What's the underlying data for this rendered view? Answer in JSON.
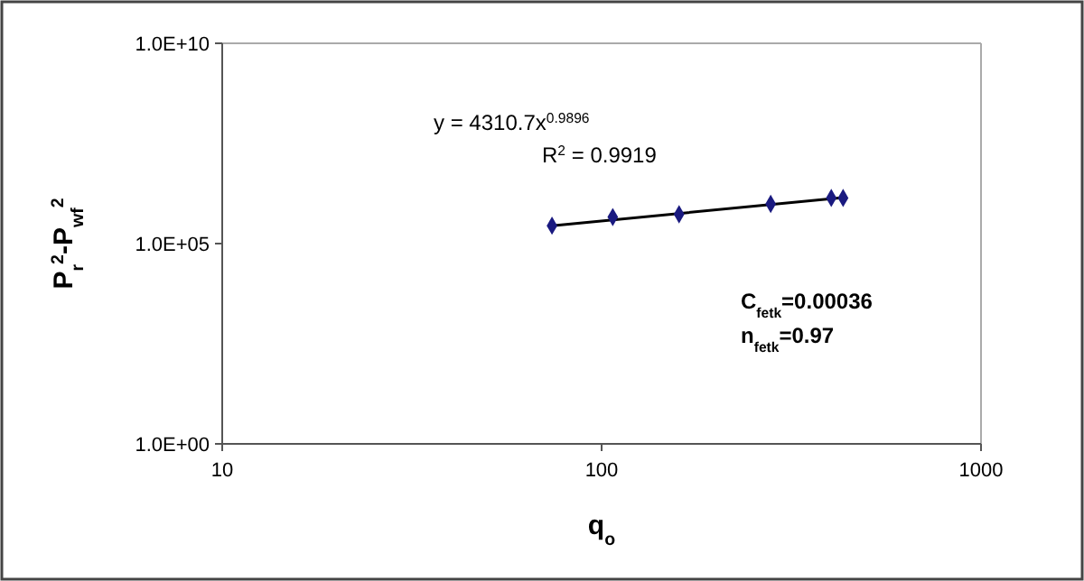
{
  "chart_data": {
    "type": "scatter",
    "xlabel": "q$_{o}$",
    "ylabel": "P$_{r}$$^{2}$-P$_{wf}$$^{2}$",
    "log": "xy",
    "xlim": [
      10,
      1000
    ],
    "ylim": [
      1,
      10000000000
    ],
    "xticks": [
      10,
      100,
      1000
    ],
    "yticks": [
      {
        "value": 1,
        "label": "1.0E+00"
      },
      {
        "value": 100000,
        "label": "1.0E+05"
      },
      {
        "value": 10000000000,
        "label": "1.0E+10"
      }
    ],
    "grid": false,
    "marker": "diamond",
    "series": [
      {
        "color": "#1a1a80",
        "x": [
          74,
          107,
          160,
          279,
          403,
          433
        ],
        "values": [
          280000,
          460000,
          540000,
          980000,
          1380000,
          1380000
        ]
      },
      {
        "type": "line",
        "color": "#000000",
        "line_style": "solid",
        "marker": "none",
        "x": [
          74,
          433
        ],
        "values": [
          280000,
          1400000
        ]
      }
    ],
    "annotations": [
      "y = 4310.7x$^{0.9896}$",
      "R$^{2}$ = 0.9919",
      "C$_{fetk}$=0.00036",
      "n$_{fetk}$=0.97"
    ]
  }
}
